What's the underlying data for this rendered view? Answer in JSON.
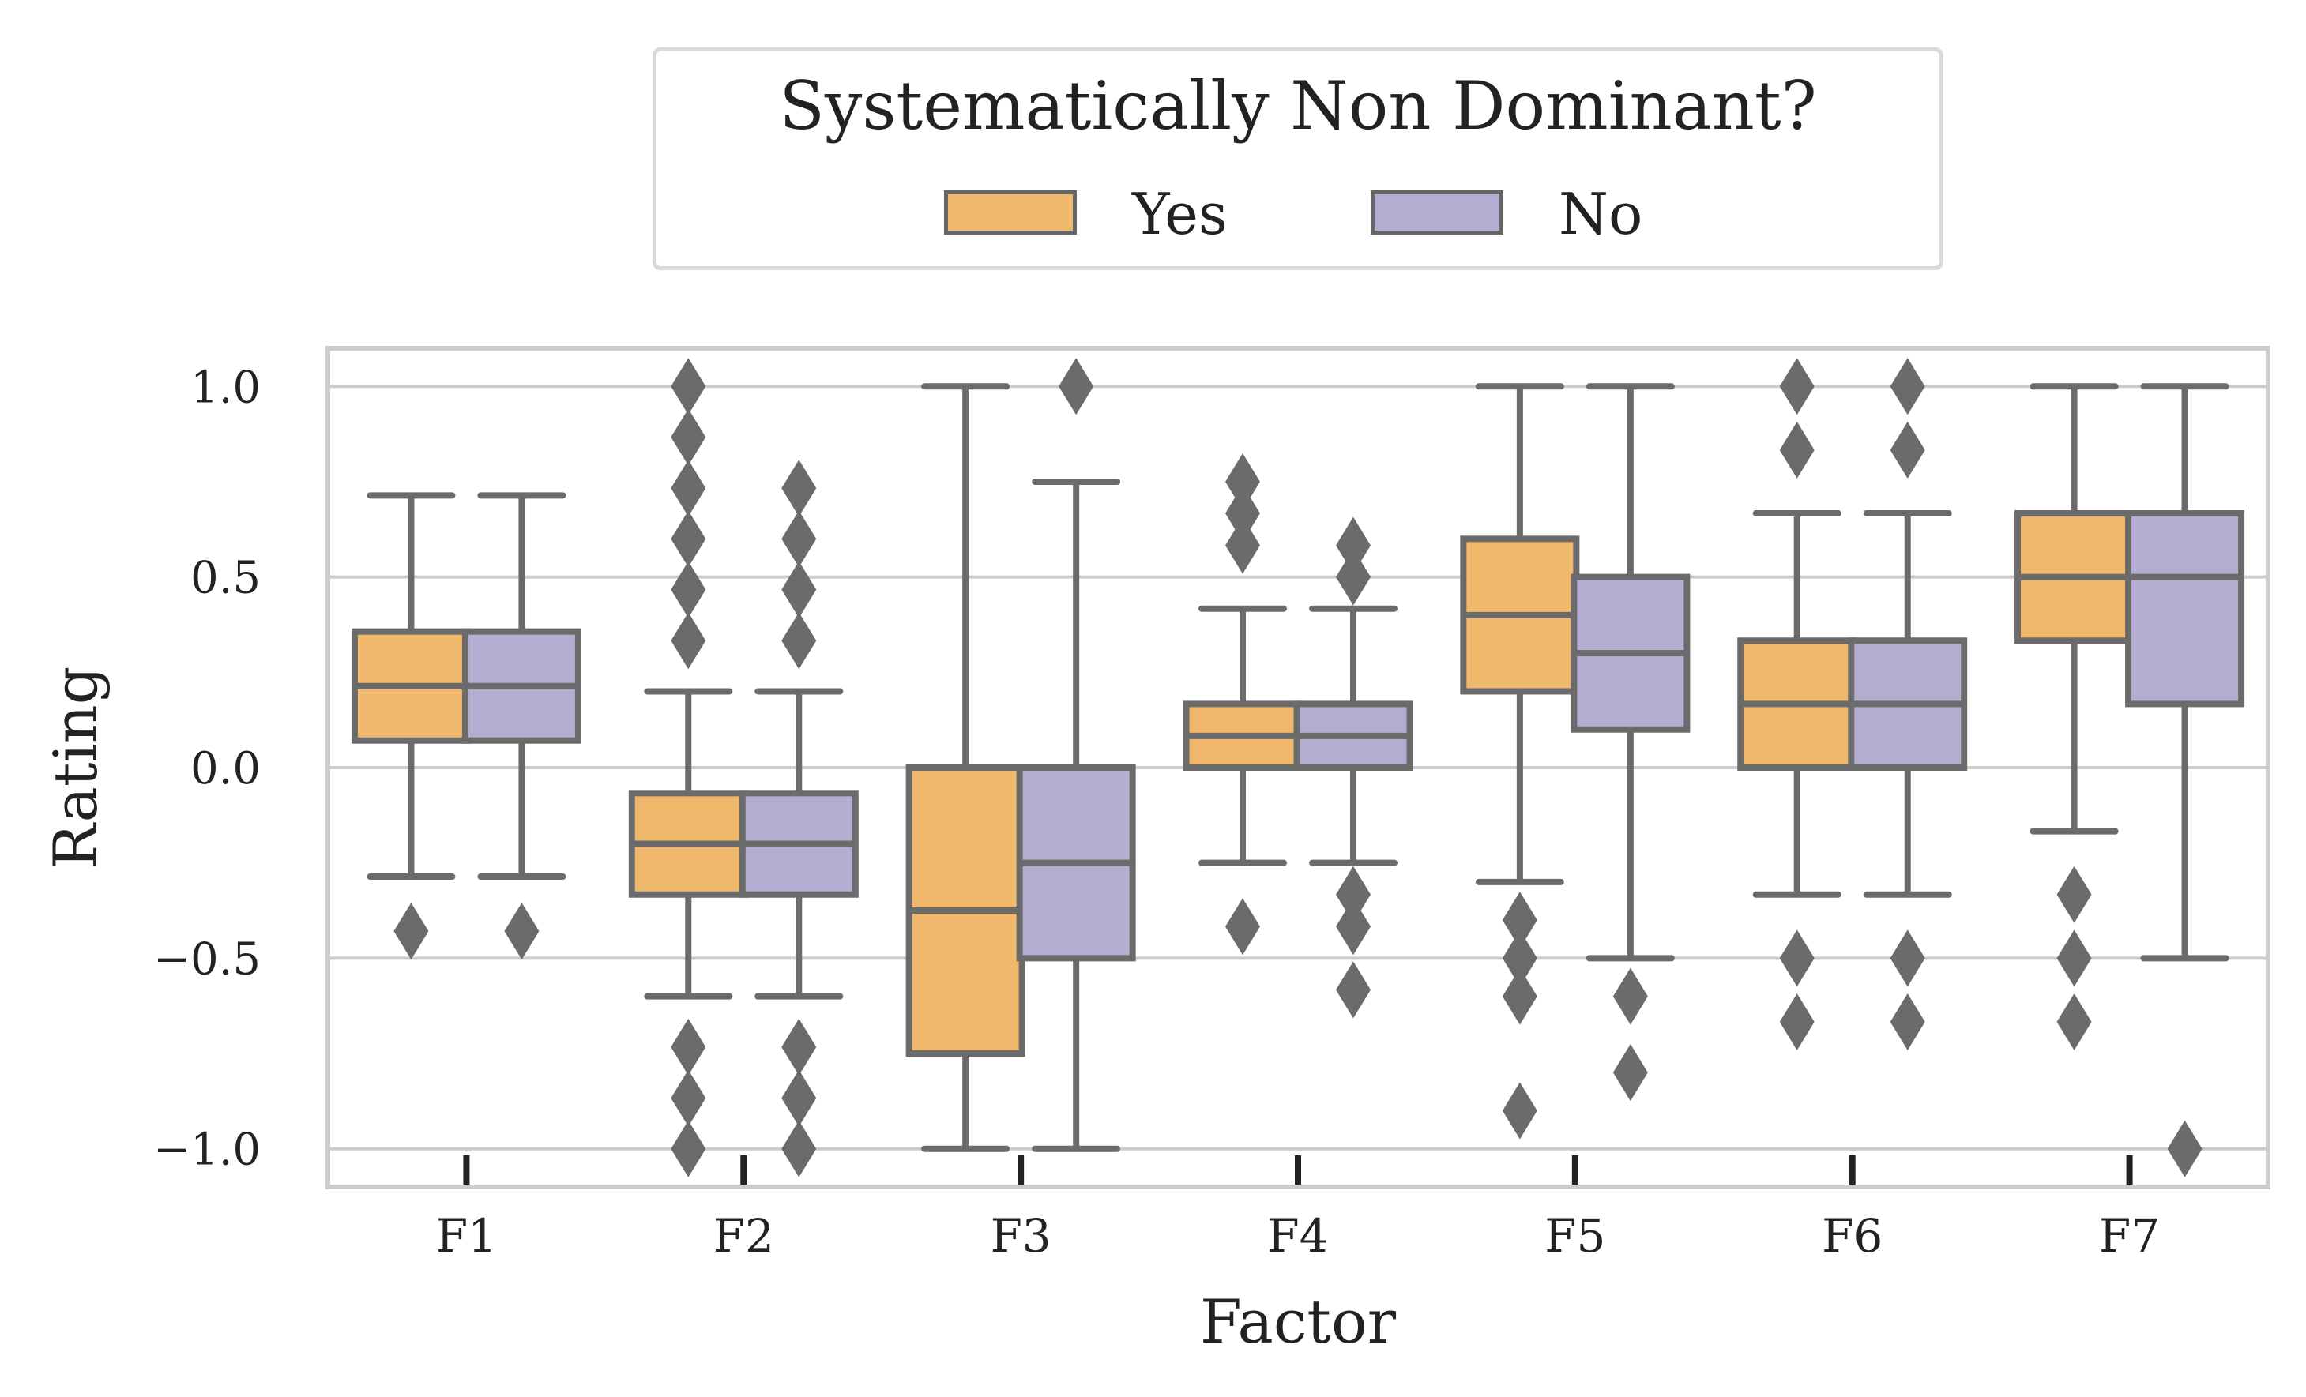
{
  "legend": {
    "title": "Systematically Non Dominant?",
    "entries": [
      {
        "label": "Yes",
        "color": "#f0b86c"
      },
      {
        "label": "No",
        "color": "#b3aed1"
      }
    ]
  },
  "chart_data": {
    "type": "box",
    "xlabel": "Factor",
    "ylabel": "Rating",
    "ylim": [
      -1.1,
      1.1
    ],
    "yticks": [
      1.0,
      0.5,
      0.0,
      -0.5,
      -1.0
    ],
    "ytick_labels": [
      "1.0",
      "0.5",
      "0.0",
      "−0.5",
      "−1.0"
    ],
    "categories": [
      "F1",
      "F2",
      "F3",
      "F4",
      "F5",
      "F6",
      "F7"
    ],
    "grid": true,
    "legend_position": "top-center",
    "series": [
      {
        "name": "Yes",
        "color": "#f0b86c",
        "boxes": [
          {
            "whisker_low": -0.286,
            "q1": 0.071,
            "median": 0.214,
            "q3": 0.357,
            "whisker_high": 0.714,
            "outliers": [
              -0.429
            ]
          },
          {
            "whisker_low": -0.6,
            "q1": -0.333,
            "median": -0.2,
            "q3": -0.067,
            "whisker_high": 0.2,
            "outliers": [
              1.0,
              0.867,
              0.733,
              0.6,
              0.467,
              0.333,
              -0.733,
              -0.867,
              -1.0
            ]
          },
          {
            "whisker_low": -1.0,
            "q1": -0.75,
            "median": -0.375,
            "q3": 0.0,
            "whisker_high": 1.0,
            "outliers": []
          },
          {
            "whisker_low": -0.25,
            "q1": 0.0,
            "median": 0.083,
            "q3": 0.167,
            "whisker_high": 0.417,
            "outliers": [
              0.75,
              0.667,
              0.583,
              -0.417
            ]
          },
          {
            "whisker_low": -0.3,
            "q1": 0.2,
            "median": 0.4,
            "q3": 0.6,
            "whisker_high": 1.0,
            "outliers": [
              -0.4,
              -0.5,
              -0.6,
              -0.9
            ]
          },
          {
            "whisker_low": -0.333,
            "q1": 0.0,
            "median": 0.167,
            "q3": 0.333,
            "whisker_high": 0.667,
            "outliers": [
              1.0,
              0.833,
              -0.5,
              -0.667
            ]
          },
          {
            "whisker_low": -0.167,
            "q1": 0.333,
            "median": 0.5,
            "q3": 0.667,
            "whisker_high": 1.0,
            "outliers": [
              -0.333,
              -0.5,
              -0.667
            ]
          }
        ]
      },
      {
        "name": "No",
        "color": "#b3aed1",
        "boxes": [
          {
            "whisker_low": -0.286,
            "q1": 0.071,
            "median": 0.214,
            "q3": 0.357,
            "whisker_high": 0.714,
            "outliers": [
              -0.429
            ]
          },
          {
            "whisker_low": -0.6,
            "q1": -0.333,
            "median": -0.2,
            "q3": -0.067,
            "whisker_high": 0.2,
            "outliers": [
              0.733,
              0.6,
              0.467,
              0.333,
              -0.733,
              -0.867,
              -1.0
            ]
          },
          {
            "whisker_low": -1.0,
            "q1": -0.5,
            "median": -0.25,
            "q3": 0.0,
            "whisker_high": 0.75,
            "outliers": [
              1.0
            ]
          },
          {
            "whisker_low": -0.25,
            "q1": 0.0,
            "median": 0.083,
            "q3": 0.167,
            "whisker_high": 0.417,
            "outliers": [
              0.583,
              0.5,
              -0.333,
              -0.417,
              -0.583
            ]
          },
          {
            "whisker_low": -0.5,
            "q1": 0.1,
            "median": 0.3,
            "q3": 0.5,
            "whisker_high": 1.0,
            "outliers": [
              -0.6,
              -0.8
            ]
          },
          {
            "whisker_low": -0.333,
            "q1": 0.0,
            "median": 0.167,
            "q3": 0.333,
            "whisker_high": 0.667,
            "outliers": [
              1.0,
              0.833,
              -0.5,
              -0.667
            ]
          },
          {
            "whisker_low": -0.5,
            "q1": 0.167,
            "median": 0.5,
            "q3": 0.667,
            "whisker_high": 1.0,
            "outliers": [
              -1.0
            ]
          }
        ]
      }
    ]
  }
}
